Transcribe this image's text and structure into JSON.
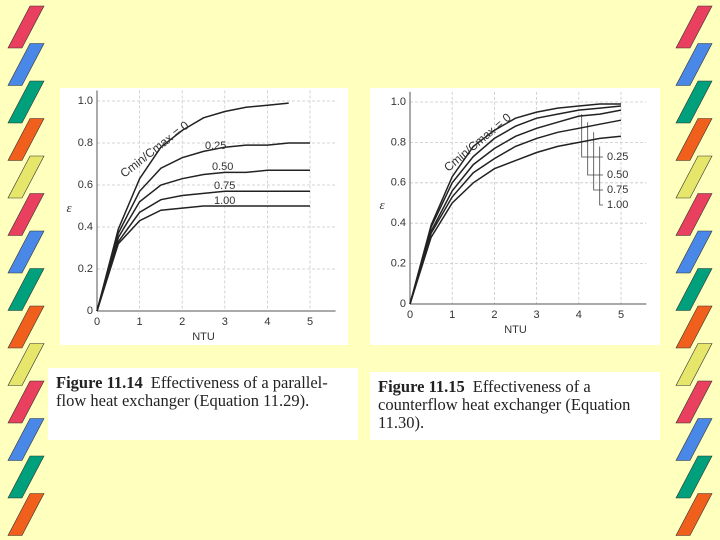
{
  "chart_data": [
    {
      "type": "line",
      "xlabel": "NTU",
      "ylabel": "ε",
      "x": [
        0,
        0.5,
        1,
        1.5,
        2,
        2.5,
        3,
        3.5,
        4,
        4.5,
        5
      ],
      "xlim": [
        0,
        5.6
      ],
      "ylim": [
        0,
        1.05
      ],
      "xticks": [
        0,
        1,
        2,
        3,
        4,
        5
      ],
      "yticks": [
        0,
        0.2,
        0.4,
        0.6,
        0.8,
        {
          "value": 1,
          "label": "1.0"
        }
      ],
      "grid": true,
      "series": [
        {
          "name": "Cmin/Cmax = 0",
          "color": "#222222",
          "values": [
            0,
            0.39,
            0.63,
            0.78,
            0.86,
            0.92,
            0.95,
            0.97,
            0.98,
            0.99,
            null
          ]
        },
        {
          "name": "0.25",
          "color": "#222222",
          "values": [
            0,
            0.37,
            0.57,
            0.68,
            0.73,
            0.76,
            0.78,
            0.79,
            0.79,
            0.8,
            0.8
          ]
        },
        {
          "name": "0.50",
          "color": "#222222",
          "values": [
            0,
            0.35,
            0.52,
            0.6,
            0.63,
            0.65,
            0.66,
            0.66,
            0.67,
            0.67,
            0.67
          ]
        },
        {
          "name": "0.75",
          "color": "#222222",
          "values": [
            0,
            0.33,
            0.47,
            0.53,
            0.55,
            0.56,
            0.57,
            0.57,
            0.57,
            0.57,
            0.57
          ]
        },
        {
          "name": "1.00",
          "color": "#222222",
          "values": [
            0,
            0.32,
            0.43,
            0.48,
            0.49,
            0.5,
            0.5,
            0.5,
            0.5,
            0.5,
            0.5
          ]
        }
      ],
      "caption": {
        "label": "Figure 11.14",
        "lines": [
          "Effectiveness of a parallel-",
          "flow heat exchanger (Equation 11.29)."
        ]
      }
    },
    {
      "type": "line",
      "xlabel": "NTU",
      "ylabel": "ε",
      "x": [
        0,
        0.5,
        1,
        1.5,
        2,
        2.5,
        3,
        3.5,
        4,
        4.5,
        5
      ],
      "xlim": [
        0,
        5.6
      ],
      "ylim": [
        0,
        1.05
      ],
      "xticks": [
        0,
        1,
        2,
        3,
        4,
        5
      ],
      "yticks": [
        0,
        0.2,
        0.4,
        0.6,
        0.8,
        {
          "value": 1,
          "label": "1.0"
        }
      ],
      "grid": true,
      "series": [
        {
          "name": "Cmin/Cmax = 0",
          "color": "#222222",
          "values": [
            0,
            0.39,
            0.63,
            0.78,
            0.86,
            0.92,
            0.95,
            0.97,
            0.98,
            0.99,
            0.99
          ]
        },
        {
          "name": "0.25",
          "color": "#222222",
          "values": [
            0,
            0.38,
            0.6,
            0.73,
            0.82,
            0.88,
            0.92,
            0.94,
            0.96,
            0.97,
            0.98
          ]
        },
        {
          "name": "0.50",
          "color": "#222222",
          "values": [
            0,
            0.36,
            0.56,
            0.69,
            0.77,
            0.83,
            0.87,
            0.9,
            0.93,
            0.94,
            0.96
          ]
        },
        {
          "name": "0.75",
          "color": "#222222",
          "values": [
            0,
            0.35,
            0.53,
            0.65,
            0.72,
            0.78,
            0.82,
            0.85,
            0.87,
            0.89,
            0.91
          ]
        },
        {
          "name": "1.00",
          "color": "#222222",
          "values": [
            0,
            0.33,
            0.5,
            0.6,
            0.67,
            0.71,
            0.75,
            0.78,
            0.8,
            0.82,
            0.83
          ]
        }
      ],
      "caption": {
        "label": "Figure 11.15",
        "lines": [
          "Effectiveness of a",
          "counterflow heat exchanger (Equation",
          "11.30)."
        ]
      }
    }
  ]
}
